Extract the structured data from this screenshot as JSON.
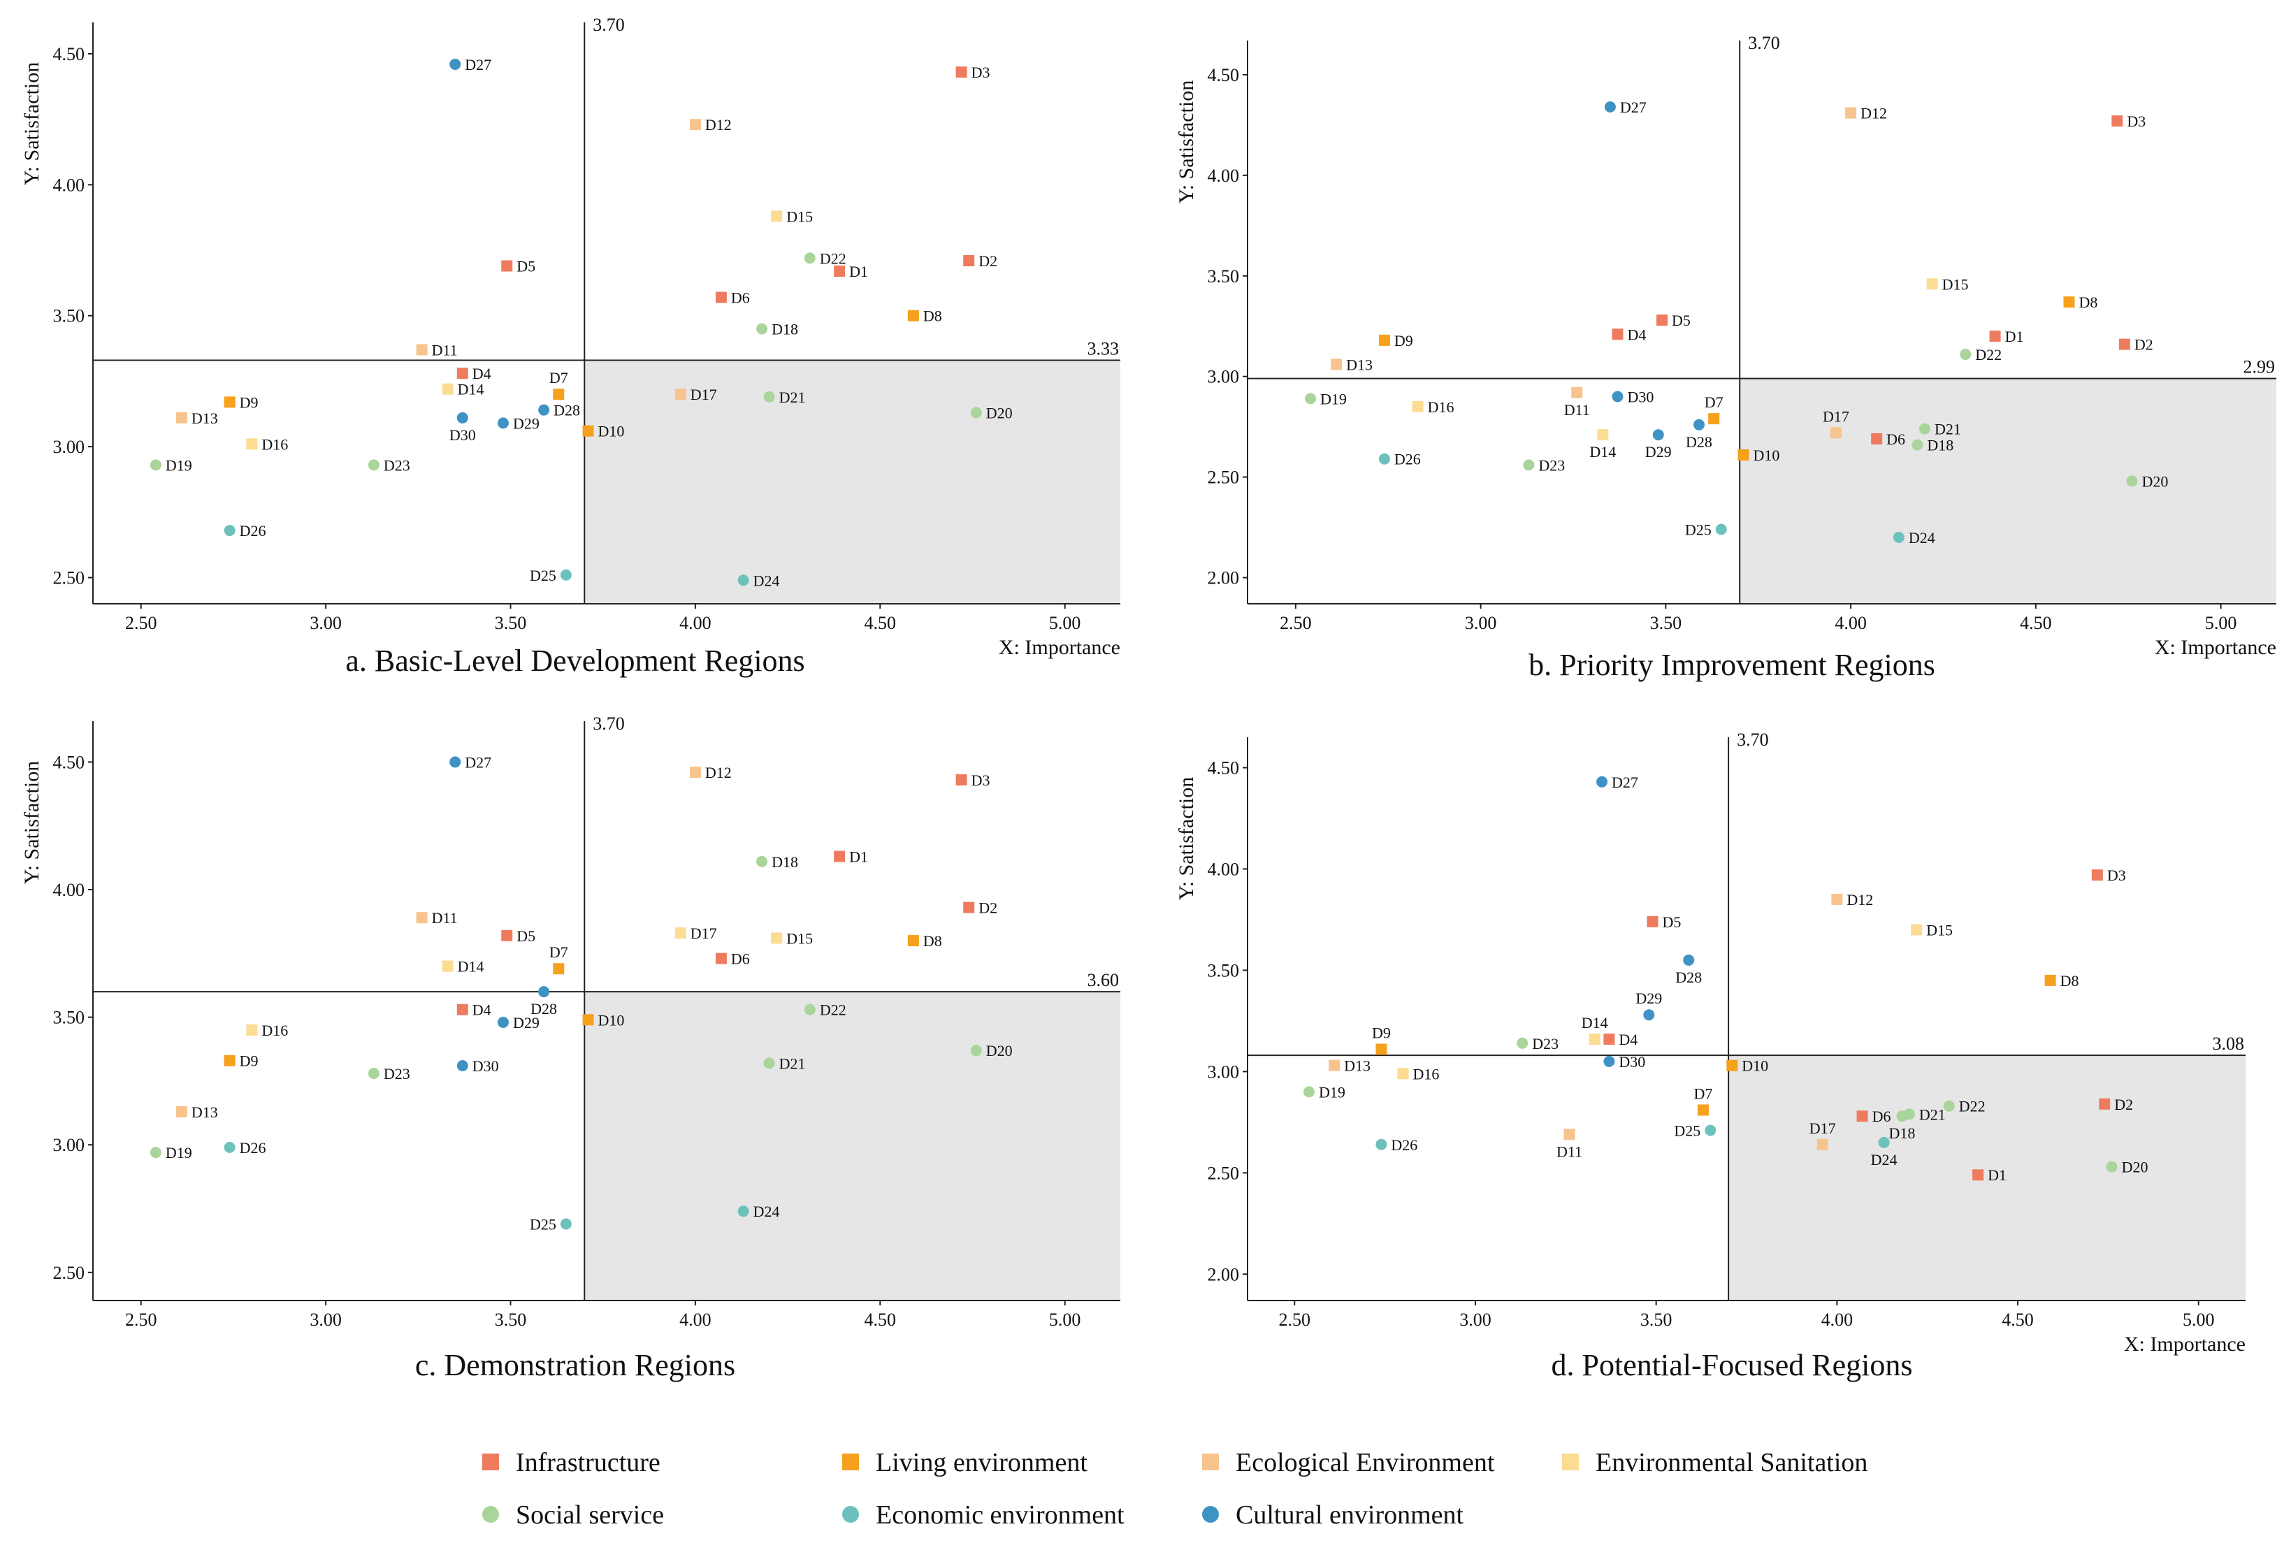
{
  "colors": {
    "Infrastructure": "#ef7b5f",
    "Living environment": "#f5a11c",
    "Ecological Environment": "#f8c48d",
    "Environmental Sanitation": "#fbdc92",
    "Social service": "#a9d49a",
    "Economic environment": "#6dc1bd",
    "Cultural environment": "#3f93c4",
    "quadrant_shade": "#e6e6e6"
  },
  "legend": [
    {
      "label": "Infrastructure",
      "shape": "square"
    },
    {
      "label": "Living environment",
      "shape": "square"
    },
    {
      "label": "Ecological Environment",
      "shape": "square"
    },
    {
      "label": "Environmental Sanitation",
      "shape": "square"
    },
    {
      "label": "Social service",
      "shape": "circle"
    },
    {
      "label": "Economic environment",
      "shape": "circle"
    },
    {
      "label": "Cultural environment",
      "shape": "circle"
    }
  ],
  "chart_data": [
    {
      "type": "scatter",
      "title": "a. Basic-Level Development Regions",
      "xlabel": "X: Importance",
      "ylabel": "Y: Satisfaction",
      "xlim": [
        2.37,
        5.15
      ],
      "ylim": [
        2.4,
        4.62
      ],
      "xticks": [
        "2.50",
        "3.00",
        "3.50",
        "4.00",
        "4.50",
        "5.00"
      ],
      "yticks": [
        "2.50",
        "3.00",
        "3.50",
        "4.00",
        "4.50"
      ],
      "x_ref": 3.7,
      "x_ref_label": "3.70",
      "y_ref": 3.33,
      "y_ref_label": "3.33",
      "points": [
        {
          "id": "D1",
          "cat": "Infrastructure",
          "x": 4.39,
          "y": 3.67
        },
        {
          "id": "D2",
          "cat": "Infrastructure",
          "x": 4.74,
          "y": 3.71
        },
        {
          "id": "D3",
          "cat": "Infrastructure",
          "x": 4.72,
          "y": 4.43
        },
        {
          "id": "D4",
          "cat": "Infrastructure",
          "x": 3.37,
          "y": 3.28
        },
        {
          "id": "D5",
          "cat": "Infrastructure",
          "x": 3.49,
          "y": 3.69
        },
        {
          "id": "D6",
          "cat": "Infrastructure",
          "x": 4.07,
          "y": 3.57
        },
        {
          "id": "D7",
          "cat": "Living environment",
          "x": 3.63,
          "y": 3.2,
          "lp": "above"
        },
        {
          "id": "D8",
          "cat": "Living environment",
          "x": 4.59,
          "y": 3.5
        },
        {
          "id": "D9",
          "cat": "Living environment",
          "x": 2.74,
          "y": 3.17
        },
        {
          "id": "D10",
          "cat": "Living environment",
          "x": 3.71,
          "y": 3.06
        },
        {
          "id": "D11",
          "cat": "Ecological Environment",
          "x": 3.26,
          "y": 3.37
        },
        {
          "id": "D12",
          "cat": "Ecological Environment",
          "x": 4.0,
          "y": 4.23
        },
        {
          "id": "D13",
          "cat": "Ecological Environment",
          "x": 2.61,
          "y": 3.11
        },
        {
          "id": "D14",
          "cat": "Environmental Sanitation",
          "x": 3.33,
          "y": 3.22
        },
        {
          "id": "D15",
          "cat": "Environmental Sanitation",
          "x": 4.22,
          "y": 3.88
        },
        {
          "id": "D16",
          "cat": "Environmental Sanitation",
          "x": 2.8,
          "y": 3.01
        },
        {
          "id": "D17",
          "cat": "Ecological Environment",
          "x": 3.96,
          "y": 3.2
        },
        {
          "id": "D18",
          "cat": "Social service",
          "x": 4.18,
          "y": 3.45
        },
        {
          "id": "D19",
          "cat": "Social service",
          "x": 2.54,
          "y": 2.93
        },
        {
          "id": "D20",
          "cat": "Social service",
          "x": 4.76,
          "y": 3.13
        },
        {
          "id": "D21",
          "cat": "Social service",
          "x": 4.2,
          "y": 3.19
        },
        {
          "id": "D22",
          "cat": "Social service",
          "x": 4.31,
          "y": 3.72
        },
        {
          "id": "D23",
          "cat": "Social service",
          "x": 3.13,
          "y": 2.93
        },
        {
          "id": "D24",
          "cat": "Economic environment",
          "x": 4.13,
          "y": 2.49
        },
        {
          "id": "D25",
          "cat": "Economic environment",
          "x": 3.65,
          "y": 2.51,
          "lp": "left"
        },
        {
          "id": "D26",
          "cat": "Economic environment",
          "x": 2.74,
          "y": 2.68
        },
        {
          "id": "D27",
          "cat": "Cultural environment",
          "x": 3.35,
          "y": 4.46
        },
        {
          "id": "D28",
          "cat": "Cultural environment",
          "x": 3.59,
          "y": 3.14
        },
        {
          "id": "D29",
          "cat": "Cultural environment",
          "x": 3.48,
          "y": 3.09
        },
        {
          "id": "D30",
          "cat": "Cultural environment",
          "x": 3.37,
          "y": 3.11,
          "lp": "below"
        }
      ]
    },
    {
      "type": "scatter",
      "title": "b. Priority Improvement Regions",
      "xlabel": "X: Importance",
      "ylabel": "Y: Satisfaction",
      "xlim": [
        2.37,
        5.15
      ],
      "ylim": [
        1.87,
        4.67
      ],
      "xticks": [
        "2.50",
        "3.00",
        "3.50",
        "4.00",
        "4.50",
        "5.00"
      ],
      "yticks": [
        "2.00",
        "2.50",
        "3.00",
        "3.50",
        "4.00",
        "4.50"
      ],
      "x_ref": 3.7,
      "x_ref_label": "3.70",
      "y_ref": 2.99,
      "y_ref_label": "2.99",
      "points": [
        {
          "id": "D1",
          "cat": "Infrastructure",
          "x": 4.39,
          "y": 3.2
        },
        {
          "id": "D2",
          "cat": "Infrastructure",
          "x": 4.74,
          "y": 3.16
        },
        {
          "id": "D3",
          "cat": "Infrastructure",
          "x": 4.72,
          "y": 4.27
        },
        {
          "id": "D4",
          "cat": "Infrastructure",
          "x": 3.37,
          "y": 3.21
        },
        {
          "id": "D5",
          "cat": "Infrastructure",
          "x": 3.49,
          "y": 3.28
        },
        {
          "id": "D6",
          "cat": "Infrastructure",
          "x": 4.07,
          "y": 2.69
        },
        {
          "id": "D7",
          "cat": "Living environment",
          "x": 3.63,
          "y": 2.79,
          "lp": "above"
        },
        {
          "id": "D8",
          "cat": "Living environment",
          "x": 4.59,
          "y": 3.37
        },
        {
          "id": "D9",
          "cat": "Living environment",
          "x": 2.74,
          "y": 3.18
        },
        {
          "id": "D10",
          "cat": "Living environment",
          "x": 3.71,
          "y": 2.61
        },
        {
          "id": "D11",
          "cat": "Ecological Environment",
          "x": 3.26,
          "y": 2.92,
          "lp": "below"
        },
        {
          "id": "D12",
          "cat": "Ecological Environment",
          "x": 4.0,
          "y": 4.31
        },
        {
          "id": "D13",
          "cat": "Ecological Environment",
          "x": 2.61,
          "y": 3.06
        },
        {
          "id": "D14",
          "cat": "Environmental Sanitation",
          "x": 3.33,
          "y": 2.71,
          "lp": "below"
        },
        {
          "id": "D15",
          "cat": "Environmental Sanitation",
          "x": 4.22,
          "y": 3.46
        },
        {
          "id": "D16",
          "cat": "Environmental Sanitation",
          "x": 2.83,
          "y": 2.85
        },
        {
          "id": "D17",
          "cat": "Ecological Environment",
          "x": 3.96,
          "y": 2.72,
          "lp": "above"
        },
        {
          "id": "D18",
          "cat": "Social service",
          "x": 4.18,
          "y": 2.66
        },
        {
          "id": "D19",
          "cat": "Social service",
          "x": 2.54,
          "y": 2.89
        },
        {
          "id": "D20",
          "cat": "Social service",
          "x": 4.76,
          "y": 2.48
        },
        {
          "id": "D21",
          "cat": "Social service",
          "x": 4.2,
          "y": 2.74
        },
        {
          "id": "D22",
          "cat": "Social service",
          "x": 4.31,
          "y": 3.11
        },
        {
          "id": "D23",
          "cat": "Social service",
          "x": 3.13,
          "y": 2.56
        },
        {
          "id": "D24",
          "cat": "Economic environment",
          "x": 4.13,
          "y": 2.2
        },
        {
          "id": "D25",
          "cat": "Economic environment",
          "x": 3.65,
          "y": 2.24,
          "lp": "left"
        },
        {
          "id": "D26",
          "cat": "Economic environment",
          "x": 2.74,
          "y": 2.59
        },
        {
          "id": "D27",
          "cat": "Cultural environment",
          "x": 3.35,
          "y": 4.34
        },
        {
          "id": "D28",
          "cat": "Cultural environment",
          "x": 3.59,
          "y": 2.76,
          "lp": "below"
        },
        {
          "id": "D29",
          "cat": "Cultural environment",
          "x": 3.48,
          "y": 2.71,
          "lp": "below"
        },
        {
          "id": "D30",
          "cat": "Cultural environment",
          "x": 3.37,
          "y": 2.9
        }
      ]
    },
    {
      "type": "scatter",
      "title": "c. Demonstration Regions",
      "xlabel": "",
      "ylabel": "Y: Satisfaction",
      "xlim": [
        2.37,
        5.15
      ],
      "ylim": [
        2.39,
        4.66
      ],
      "xticks": [
        "2.50",
        "3.00",
        "3.50",
        "4.00",
        "4.50",
        "5.00"
      ],
      "yticks": [
        "2.50",
        "3.00",
        "3.50",
        "4.00",
        "4.50"
      ],
      "x_ref": 3.7,
      "x_ref_label": "3.70",
      "y_ref": 3.6,
      "y_ref_label": "3.60",
      "points": [
        {
          "id": "D1",
          "cat": "Infrastructure",
          "x": 4.39,
          "y": 4.13
        },
        {
          "id": "D2",
          "cat": "Infrastructure",
          "x": 4.74,
          "y": 3.93
        },
        {
          "id": "D3",
          "cat": "Infrastructure",
          "x": 4.72,
          "y": 4.43
        },
        {
          "id": "D4",
          "cat": "Infrastructure",
          "x": 3.37,
          "y": 3.53
        },
        {
          "id": "D5",
          "cat": "Infrastructure",
          "x": 3.49,
          "y": 3.82
        },
        {
          "id": "D6",
          "cat": "Infrastructure",
          "x": 4.07,
          "y": 3.73
        },
        {
          "id": "D7",
          "cat": "Living environment",
          "x": 3.63,
          "y": 3.69,
          "lp": "above"
        },
        {
          "id": "D8",
          "cat": "Living environment",
          "x": 4.59,
          "y": 3.8
        },
        {
          "id": "D9",
          "cat": "Living environment",
          "x": 2.74,
          "y": 3.33
        },
        {
          "id": "D10",
          "cat": "Living environment",
          "x": 3.71,
          "y": 3.49
        },
        {
          "id": "D11",
          "cat": "Ecological Environment",
          "x": 3.26,
          "y": 3.89
        },
        {
          "id": "D12",
          "cat": "Ecological Environment",
          "x": 4.0,
          "y": 4.46
        },
        {
          "id": "D13",
          "cat": "Ecological Environment",
          "x": 2.61,
          "y": 3.13
        },
        {
          "id": "D14",
          "cat": "Environmental Sanitation",
          "x": 3.33,
          "y": 3.7
        },
        {
          "id": "D15",
          "cat": "Environmental Sanitation",
          "x": 4.22,
          "y": 3.81
        },
        {
          "id": "D16",
          "cat": "Environmental Sanitation",
          "x": 2.8,
          "y": 3.45
        },
        {
          "id": "D17",
          "cat": "Environmental Sanitation",
          "x": 3.96,
          "y": 3.83
        },
        {
          "id": "D18",
          "cat": "Social service",
          "x": 4.18,
          "y": 4.11
        },
        {
          "id": "D19",
          "cat": "Social service",
          "x": 2.54,
          "y": 2.97
        },
        {
          "id": "D20",
          "cat": "Social service",
          "x": 4.76,
          "y": 3.37
        },
        {
          "id": "D21",
          "cat": "Social service",
          "x": 4.2,
          "y": 3.32
        },
        {
          "id": "D22",
          "cat": "Social service",
          "x": 4.31,
          "y": 3.53
        },
        {
          "id": "D23",
          "cat": "Social service",
          "x": 3.13,
          "y": 3.28
        },
        {
          "id": "D24",
          "cat": "Economic environment",
          "x": 4.13,
          "y": 2.74
        },
        {
          "id": "D25",
          "cat": "Economic environment",
          "x": 3.65,
          "y": 2.69,
          "lp": "left"
        },
        {
          "id": "D26",
          "cat": "Economic environment",
          "x": 2.74,
          "y": 2.99
        },
        {
          "id": "D27",
          "cat": "Cultural environment",
          "x": 3.35,
          "y": 4.5
        },
        {
          "id": "D28",
          "cat": "Cultural environment",
          "x": 3.59,
          "y": 3.6,
          "lp": "below"
        },
        {
          "id": "D29",
          "cat": "Cultural environment",
          "x": 3.48,
          "y": 3.48
        },
        {
          "id": "D30",
          "cat": "Cultural environment",
          "x": 3.37,
          "y": 3.31
        }
      ]
    },
    {
      "type": "scatter",
      "title": "d. Potential-Focused Regions",
      "xlabel": "X: Importance",
      "ylabel": "Y: Satisfaction",
      "xlim": [
        2.37,
        5.13
      ],
      "ylim": [
        1.87,
        4.65
      ],
      "xticks": [
        "2.50",
        "3.00",
        "3.50",
        "4.00",
        "4.50",
        "5.00"
      ],
      "yticks": [
        "2.00",
        "2.50",
        "3.00",
        "3.50",
        "4.00",
        "4.50"
      ],
      "x_ref": 3.7,
      "x_ref_label": "3.70",
      "y_ref": 3.08,
      "y_ref_label": "3.08",
      "points": [
        {
          "id": "D1",
          "cat": "Infrastructure",
          "x": 4.39,
          "y": 2.49
        },
        {
          "id": "D2",
          "cat": "Infrastructure",
          "x": 4.74,
          "y": 2.84
        },
        {
          "id": "D3",
          "cat": "Infrastructure",
          "x": 4.72,
          "y": 3.97
        },
        {
          "id": "D4",
          "cat": "Infrastructure",
          "x": 3.37,
          "y": 3.16
        },
        {
          "id": "D5",
          "cat": "Infrastructure",
          "x": 3.49,
          "y": 3.74
        },
        {
          "id": "D6",
          "cat": "Infrastructure",
          "x": 4.07,
          "y": 2.78
        },
        {
          "id": "D7",
          "cat": "Living environment",
          "x": 3.63,
          "y": 2.81,
          "lp": "above"
        },
        {
          "id": "D8",
          "cat": "Living environment",
          "x": 4.59,
          "y": 3.45
        },
        {
          "id": "D9",
          "cat": "Living environment",
          "x": 2.74,
          "y": 3.11,
          "lp": "above"
        },
        {
          "id": "D10",
          "cat": "Living environment",
          "x": 3.71,
          "y": 3.03
        },
        {
          "id": "D11",
          "cat": "Ecological Environment",
          "x": 3.26,
          "y": 2.69,
          "lp": "below"
        },
        {
          "id": "D12",
          "cat": "Ecological Environment",
          "x": 4.0,
          "y": 3.85
        },
        {
          "id": "D13",
          "cat": "Ecological Environment",
          "x": 2.61,
          "y": 3.03
        },
        {
          "id": "D14",
          "cat": "Environmental Sanitation",
          "x": 3.33,
          "y": 3.16,
          "lp": "above"
        },
        {
          "id": "D15",
          "cat": "Environmental Sanitation",
          "x": 4.22,
          "y": 3.7
        },
        {
          "id": "D16",
          "cat": "Environmental Sanitation",
          "x": 2.8,
          "y": 2.99
        },
        {
          "id": "D17",
          "cat": "Ecological Environment",
          "x": 3.96,
          "y": 2.64,
          "lp": "above"
        },
        {
          "id": "D18",
          "cat": "Social service",
          "x": 4.18,
          "y": 2.78,
          "lp": "below"
        },
        {
          "id": "D19",
          "cat": "Social service",
          "x": 2.54,
          "y": 2.9
        },
        {
          "id": "D20",
          "cat": "Social service",
          "x": 4.76,
          "y": 2.53
        },
        {
          "id": "D21",
          "cat": "Social service",
          "x": 4.2,
          "y": 2.79
        },
        {
          "id": "D22",
          "cat": "Social service",
          "x": 4.31,
          "y": 2.83
        },
        {
          "id": "D23",
          "cat": "Social service",
          "x": 3.13,
          "y": 3.14
        },
        {
          "id": "D24",
          "cat": "Economic environment",
          "x": 4.13,
          "y": 2.65,
          "lp": "below"
        },
        {
          "id": "D25",
          "cat": "Economic environment",
          "x": 3.65,
          "y": 2.71,
          "lp": "left"
        },
        {
          "id": "D26",
          "cat": "Economic environment",
          "x": 2.74,
          "y": 2.64
        },
        {
          "id": "D27",
          "cat": "Cultural environment",
          "x": 3.35,
          "y": 4.43
        },
        {
          "id": "D28",
          "cat": "Cultural environment",
          "x": 3.59,
          "y": 3.55,
          "lp": "below"
        },
        {
          "id": "D29",
          "cat": "Cultural environment",
          "x": 3.48,
          "y": 3.28,
          "lp": "above"
        },
        {
          "id": "D30",
          "cat": "Cultural environment",
          "x": 3.37,
          "y": 3.05
        }
      ]
    }
  ]
}
